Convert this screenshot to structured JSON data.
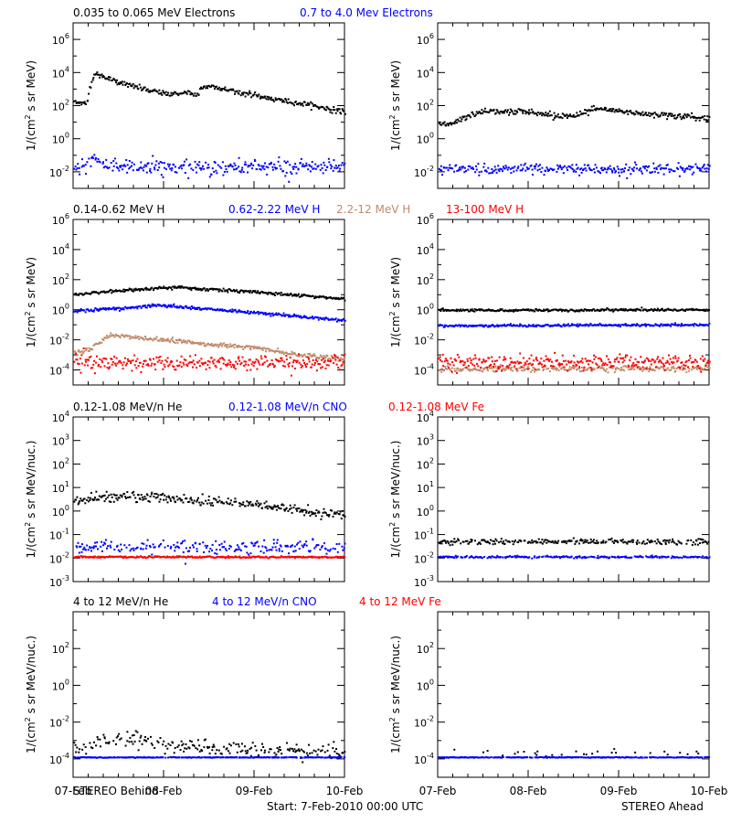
{
  "figure": {
    "footer_left": "STEREO Behind",
    "footer_center": "Start:  7-Feb-2010 00:00 UTC",
    "footer_right": "STEREO Ahead"
  },
  "chart_data": [
    {
      "type": "scatter",
      "row": 1,
      "xaxis": "time",
      "xlim": [
        "2010-02-07 00:00",
        "2010-02-10 00:00"
      ],
      "x_tick_labels": [
        "07-Feb",
        "08-Feb",
        "09-Feb",
        "10-Feb"
      ],
      "y_scale": "log",
      "ylim": [
        0.001,
        10000000
      ],
      "y_ticks": [
        0.01,
        1,
        100,
        10000,
        1000000
      ],
      "y_tick_labels": [
        "10^-2",
        "10^0",
        "10^2",
        "10^4",
        "10^6"
      ],
      "ylabel": "1/(cm^2 s sr MeV)",
      "legend": [
        {
          "label": "0.035 to 0.065 MeV Electrons",
          "color": "#000000"
        },
        {
          "label": "0.7 to 4.0 Mev Electrons",
          "color": "#0000ff"
        }
      ],
      "panels": [
        {
          "spacecraft": "STEREO Behind",
          "series": [
            {
              "color": "#000000",
              "noise": 0.08,
              "fill": 1.0,
              "x_days": [
                0,
                0.15,
                0.17,
                0.22,
                0.3,
                0.5,
                0.8,
                1.0,
                1.3,
                1.38,
                1.4,
                1.5,
                1.8,
                2.2,
                2.6,
                3.0
              ],
              "y": [
                150,
                150,
                1000,
                8000,
                6000,
                2500,
                900,
                500,
                600,
                400,
                1300,
                1500,
                700,
                250,
                110,
                40
              ]
            },
            {
              "color": "#0000ff",
              "noise": 0.22,
              "fill": 0.9,
              "x_days": [
                0,
                0.15,
                0.22,
                0.35,
                0.6,
                1.0,
                1.5,
                2.0,
                3.0
              ],
              "y": [
                0.015,
                0.02,
                0.06,
                0.03,
                0.02,
                0.02,
                0.018,
                0.02,
                0.018
              ]
            }
          ]
        },
        {
          "spacecraft": "STEREO Ahead",
          "series": [
            {
              "color": "#000000",
              "noise": 0.1,
              "fill": 1.0,
              "x_days": [
                0,
                0.2,
                0.5,
                1.0,
                1.3,
                1.5,
                1.7,
                2.0,
                2.5,
                3.0
              ],
              "y": [
                6,
                12,
                50,
                40,
                25,
                25,
                60,
                45,
                28,
                16
              ]
            },
            {
              "color": "#0000ff",
              "noise": 0.15,
              "fill": 0.9,
              "x_days": [
                0,
                3.0
              ],
              "y": [
                0.015,
                0.015
              ]
            }
          ]
        }
      ]
    },
    {
      "type": "scatter",
      "row": 2,
      "xaxis": "time",
      "xlim": [
        "2010-02-07 00:00",
        "2010-02-10 00:00"
      ],
      "x_tick_labels": [
        "07-Feb",
        "08-Feb",
        "09-Feb",
        "10-Feb"
      ],
      "y_scale": "log",
      "ylim": [
        1e-05,
        1000000
      ],
      "y_ticks": [
        0.0001,
        0.01,
        1,
        100,
        10000,
        1000000
      ],
      "y_tick_labels": [
        "10^-4",
        "10^-2",
        "10^0",
        "10^2",
        "10^4",
        "10^6"
      ],
      "ylabel": "1/(cm^2 s sr MeV)",
      "legend": [
        {
          "label": "0.14-0.62 MeV H",
          "color": "#000000"
        },
        {
          "label": "0.62-2.22 MeV H",
          "color": "#0000ff"
        },
        {
          "label": "2.2-12 MeV H",
          "color": "#c08a6a"
        },
        {
          "label": "13-100 MeV H",
          "color": "#ff0000"
        }
      ],
      "panels": [
        {
          "spacecraft": "STEREO Behind",
          "series": [
            {
              "color": "#000000",
              "noise": 0.05,
              "fill": 1.0,
              "x_days": [
                0,
                0.3,
                0.8,
                1.2,
                2.0,
                3.0
              ],
              "y": [
                10,
                15,
                25,
                30,
                15,
                5
              ]
            },
            {
              "color": "#0000ff",
              "noise": 0.05,
              "fill": 1.0,
              "x_days": [
                0,
                0.5,
                0.9,
                1.5,
                2.2,
                3.0
              ],
              "y": [
                0.8,
                1.2,
                2.0,
                1.1,
                0.5,
                0.2
              ]
            },
            {
              "color": "#c08a6a",
              "noise": 0.08,
              "fill": 1.0,
              "x_days": [
                0,
                0.2,
                0.4,
                0.7,
                1.0,
                1.5,
                2.0,
                2.5,
                3.0
              ],
              "y": [
                0.001,
                0.003,
                0.02,
                0.015,
                0.01,
                0.005,
                0.003,
                0.001,
                0.0005
              ]
            },
            {
              "color": "#ff0000",
              "noise": 0.25,
              "fill": 1.0,
              "x_days": [
                0,
                3.0
              ],
              "y": [
                0.0003,
                0.0003
              ]
            }
          ]
        },
        {
          "spacecraft": "STEREO Ahead",
          "series": [
            {
              "color": "#000000",
              "noise": 0.04,
              "fill": 1.0,
              "x_days": [
                0,
                3.0
              ],
              "y": [
                0.9,
                1.0
              ]
            },
            {
              "color": "#0000ff",
              "noise": 0.04,
              "fill": 1.0,
              "x_days": [
                0,
                3.0
              ],
              "y": [
                0.085,
                0.1
              ]
            },
            {
              "color": "#c08a6a",
              "noise": 0.1,
              "fill": 0.9,
              "x_days": [
                0,
                3.0
              ],
              "y": [
                0.00012,
                0.00012
              ]
            },
            {
              "color": "#ff0000",
              "noise": 0.25,
              "fill": 1.0,
              "x_days": [
                0,
                3.0
              ],
              "y": [
                0.0003,
                0.0003
              ]
            }
          ]
        }
      ]
    },
    {
      "type": "scatter",
      "row": 3,
      "xaxis": "time",
      "xlim": [
        "2010-02-07 00:00",
        "2010-02-10 00:00"
      ],
      "x_tick_labels": [
        "07-Feb",
        "08-Feb",
        "09-Feb",
        "10-Feb"
      ],
      "y_scale": "log",
      "ylim": [
        0.001,
        10000
      ],
      "y_ticks": [
        0.001,
        0.01,
        0.1,
        1,
        10,
        100,
        1000,
        10000
      ],
      "y_tick_labels": [
        "10^-3",
        "10^-2",
        "10^-1",
        "10^0",
        "10^1",
        "10^2",
        "10^3",
        "10^4"
      ],
      "ylabel": "1/(cm^2 s sr MeV/nuc.)",
      "legend": [
        {
          "label": "0.12-1.08 MeV/n He",
          "color": "#000000"
        },
        {
          "label": "0.12-1.08 MeV/n CNO",
          "color": "#0000ff"
        },
        {
          "label": "0.12-1.08 MeV Fe",
          "color": "#ff0000"
        }
      ],
      "panels": [
        {
          "spacecraft": "STEREO Behind",
          "series": [
            {
              "color": "#000000",
              "noise": 0.1,
              "fill": 0.9,
              "x_days": [
                0,
                0.3,
                0.8,
                1.3,
                2.0,
                2.5,
                3.0
              ],
              "y": [
                2.5,
                4.0,
                4.0,
                3.0,
                2.0,
                1.0,
                0.6
              ]
            },
            {
              "color": "#0000ff",
              "noise": 0.15,
              "fill": 0.7,
              "x_days": [
                0,
                3.0
              ],
              "y": [
                0.03,
                0.03
              ]
            },
            {
              "color": "#ff0000",
              "noise": 0.02,
              "fill": 1.0,
              "x_days": [
                0,
                3.0
              ],
              "y": [
                0.011,
                0.011
              ]
            }
          ]
        },
        {
          "spacecraft": "STEREO Ahead",
          "series": [
            {
              "color": "#000000",
              "noise": 0.06,
              "fill": 0.8,
              "x_days": [
                0,
                3.0
              ],
              "y": [
                0.05,
                0.05
              ]
            },
            {
              "color": "#0000ff",
              "noise": 0.02,
              "fill": 0.8,
              "x_days": [
                0,
                3.0
              ],
              "y": [
                0.011,
                0.011
              ]
            }
          ]
        }
      ]
    },
    {
      "type": "scatter",
      "row": 4,
      "xaxis": "time",
      "xlim": [
        "2010-02-07 00:00",
        "2010-02-10 00:00"
      ],
      "x_tick_labels": [
        "07-Feb",
        "08-Feb",
        "09-Feb",
        "10-Feb"
      ],
      "y_scale": "log",
      "ylim": [
        1e-05,
        10000
      ],
      "y_ticks": [
        0.0001,
        0.01,
        1,
        100
      ],
      "y_tick_labels": [
        "10^-4",
        "10^-2",
        "10^0",
        "10^2"
      ],
      "ylabel": "1/(cm^2 s sr MeV/nuc.)",
      "legend": [
        {
          "label": "4 to 12 MeV/n He",
          "color": "#000000"
        },
        {
          "label": "4 to 12 MeV/n CNO",
          "color": "#0000ff"
        },
        {
          "label": "4 to 12 MeV Fe",
          "color": "#ff0000"
        }
      ],
      "panels": [
        {
          "spacecraft": "STEREO Behind",
          "series": [
            {
              "color": "#000000",
              "noise": 0.2,
              "fill": 0.65,
              "x_days": [
                0,
                0.3,
                0.7,
                1.0,
                1.5,
                2.0,
                3.0
              ],
              "y": [
                0.0003,
                0.0008,
                0.0015,
                0.0006,
                0.0004,
                0.0003,
                0.00025
              ]
            },
            {
              "color": "#0000ff",
              "noise": 0.01,
              "fill": 0.9,
              "x_days": [
                0,
                3.0
              ],
              "y": [
                0.00012,
                0.00012
              ]
            }
          ]
        },
        {
          "spacecraft": "STEREO Ahead",
          "series": [
            {
              "color": "#000000",
              "noise": 0.1,
              "fill": 0.08,
              "x_days": [
                0,
                3.0
              ],
              "y": [
                0.00022,
                0.00022
              ]
            },
            {
              "color": "#0000ff",
              "noise": 0.01,
              "fill": 0.9,
              "x_days": [
                0,
                3.0
              ],
              "y": [
                0.00012,
                0.00012
              ]
            }
          ]
        }
      ]
    }
  ]
}
